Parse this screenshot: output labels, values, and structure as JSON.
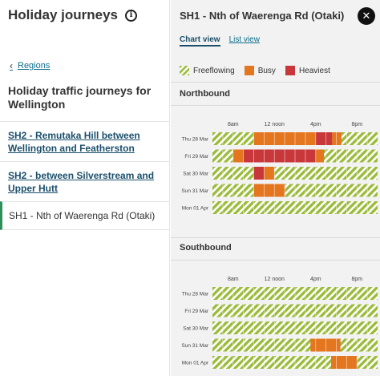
{
  "left": {
    "title": "Holiday journeys",
    "info_icon": "info-icon",
    "back_label": "Regions",
    "section_title": "Holiday traffic journeys for Wellington",
    "journeys": [
      {
        "label": "SH2 - Remutaka Hill between Wellington and Featherston",
        "active": false
      },
      {
        "label": "SH2 - between Silverstream and Upper Hutt",
        "active": false
      },
      {
        "label": "SH1 - Nth of Waerenga Rd (Otaki)",
        "active": true
      }
    ]
  },
  "right": {
    "title": "SH1 - Nth of Waerenga Rd (Otaki)",
    "close_icon": "close-icon",
    "tabs": [
      {
        "label": "Chart view",
        "active": true
      },
      {
        "label": "List view",
        "active": false
      }
    ],
    "legend": [
      {
        "label": "Freeflowing",
        "color": "#9bbb3c"
      },
      {
        "label": "Busy",
        "color": "#e4761f"
      },
      {
        "label": "Heaviest",
        "color": "#c8373a"
      }
    ]
  },
  "chart_data": [
    {
      "type": "heatmap",
      "title": "Northbound",
      "x_ticks": [
        {
          "label": "8am",
          "hour": 8
        },
        {
          "label": "12 noon",
          "hour": 12
        },
        {
          "label": "4pm",
          "hour": 16
        },
        {
          "label": "8pm",
          "hour": 20
        }
      ],
      "x_range_hours": [
        6,
        22
      ],
      "rows": [
        {
          "label": "Thu 28 Mar",
          "segments": [
            {
              "start": 10,
              "end": 14.5,
              "level": "busy"
            },
            {
              "start": 14.5,
              "end": 16,
              "level": "busy"
            },
            {
              "start": 16,
              "end": 17.6,
              "level": "heaviest"
            },
            {
              "start": 17.6,
              "end": 18.5,
              "level": "busy"
            }
          ]
        },
        {
          "label": "Fri 29 Mar",
          "segments": [
            {
              "start": 8,
              "end": 9,
              "level": "busy"
            },
            {
              "start": 9,
              "end": 16,
              "level": "heaviest"
            },
            {
              "start": 16,
              "end": 16.8,
              "level": "busy"
            }
          ]
        },
        {
          "label": "Sat 30 Mar",
          "segments": [
            {
              "start": 10,
              "end": 11,
              "level": "heaviest"
            },
            {
              "start": 11,
              "end": 12,
              "level": "busy"
            }
          ]
        },
        {
          "label": "Sun 31 Mar",
          "segments": [
            {
              "start": 10,
              "end": 13,
              "level": "busy"
            }
          ]
        },
        {
          "label": "Mon 01 Apr",
          "segments": []
        }
      ]
    },
    {
      "type": "heatmap",
      "title": "Southbound",
      "x_ticks": [
        {
          "label": "8am",
          "hour": 8
        },
        {
          "label": "12 noon",
          "hour": 12
        },
        {
          "label": "4pm",
          "hour": 16
        },
        {
          "label": "8pm",
          "hour": 20
        }
      ],
      "x_range_hours": [
        6,
        22
      ],
      "rows": [
        {
          "label": "Thu 28 Mar",
          "segments": []
        },
        {
          "label": "Fri 29 Mar",
          "segments": []
        },
        {
          "label": "Sat 30 Mar",
          "segments": []
        },
        {
          "label": "Sun 31 Mar",
          "segments": [
            {
              "start": 15.5,
              "end": 18.4,
              "level": "busy"
            }
          ]
        },
        {
          "label": "Mon 01 Apr",
          "segments": [
            {
              "start": 17.5,
              "end": 20,
              "level": "busy"
            }
          ]
        }
      ]
    }
  ]
}
